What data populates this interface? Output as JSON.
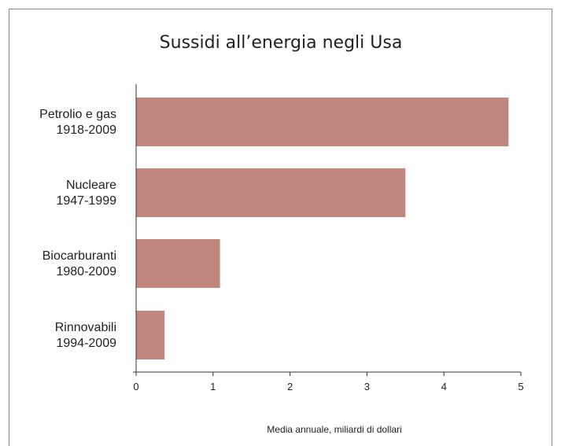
{
  "chart_data": {
    "type": "bar",
    "orientation": "horizontal",
    "title": "Sussidi all’energia negli Usa",
    "xlabel": "Media annuale, miliardi di dollari",
    "ylabel": "",
    "categories": [
      [
        "Petrolio e gas",
        "1918-2009"
      ],
      [
        "Nucleare",
        "1947-1999"
      ],
      [
        "Biocarburanti",
        "1980-2009"
      ],
      [
        "Rinnovabili",
        "1994-2009"
      ]
    ],
    "values": [
      4.84,
      3.5,
      1.09,
      0.37
    ],
    "xlim": [
      0,
      5
    ],
    "xticks": [
      "0",
      "1",
      "2",
      "3",
      "4",
      "5"
    ],
    "grid": false,
    "bar_color": "#c1877f"
  }
}
